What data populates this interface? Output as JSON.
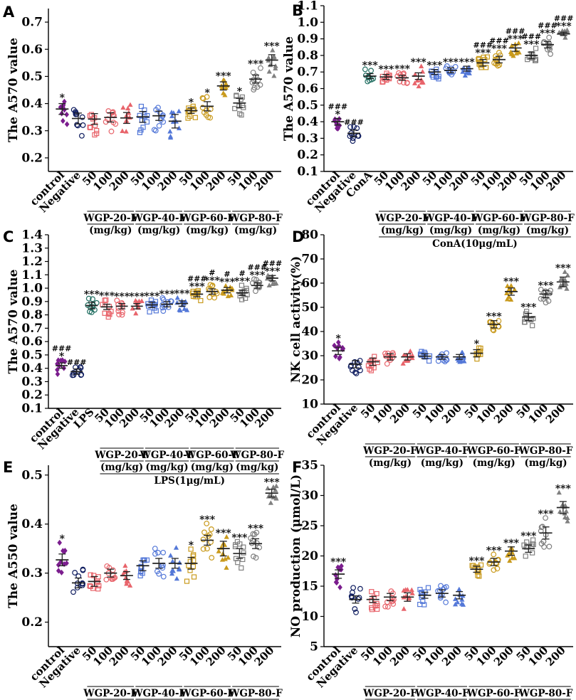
{
  "figure": {
    "categories": [
      "control",
      "Negative",
      "50",
      "100",
      "200",
      "50",
      "100",
      "200",
      "50",
      "100",
      "200",
      "50",
      "100",
      "200"
    ],
    "colors": [
      "#7b1d8e",
      "#0d1b5e",
      "#e8646b",
      "#e8646b",
      "#e8646b",
      "#5478d8",
      "#5478d8",
      "#5478d8",
      "#c99a1c",
      "#c99a1c",
      "#c99a1c",
      "#808080",
      "#808080",
      "#808080"
    ],
    "markers": [
      "diamond",
      "circle",
      "square",
      "circle",
      "triangle",
      "square",
      "circle",
      "triangle",
      "square",
      "circle",
      "triangle",
      "square",
      "circle",
      "triangle"
    ],
    "group_labels": [
      "WGP-20-F",
      "WGP-40-F",
      "WGP-60-F",
      "WGP-80-F"
    ],
    "unit_label": "(mg/kg)"
  },
  "chart_data": [
    {
      "panel": "A",
      "type": "scatter",
      "ylabel": "The A570 value",
      "ylim": [
        0.15,
        0.75
      ],
      "yticks": [
        "0.2",
        "0.3",
        "0.4",
        "0.5",
        "0.6",
        "0.7"
      ],
      "tick_values": [
        0.2,
        0.3,
        0.4,
        0.5,
        0.6,
        0.7
      ],
      "means": [
        0.38,
        0.345,
        0.343,
        0.349,
        0.347,
        0.351,
        0.355,
        0.335,
        0.374,
        0.39,
        0.465,
        0.402,
        0.49,
        0.56
      ],
      "sems": [
        0.02,
        0.02,
        0.02,
        0.017,
        0.02,
        0.02,
        0.017,
        0.025,
        0.01,
        0.017,
        0.015,
        0.017,
        0.015,
        0.02
      ],
      "spreads": [
        0.06,
        0.07,
        0.06,
        0.06,
        0.06,
        0.06,
        0.07,
        0.08,
        0.035,
        0.06,
        0.05,
        0.06,
        0.05,
        0.07
      ],
      "significance": [
        "*",
        "",
        "",
        "",
        "",
        "",
        "",
        "",
        "*",
        "*",
        "***",
        "*",
        "***",
        "***"
      ],
      "hashes": [
        "",
        "",
        "",
        "",
        "",
        "",
        "",
        "",
        "",
        "",
        "",
        "",
        "",
        ""
      ],
      "conditioned": false
    },
    {
      "panel": "B",
      "type": "scatter",
      "ylabel": "The A570 value",
      "ylim": [
        0.1,
        1.1
      ],
      "yticks": [
        "0.1",
        "0.2",
        "0.3",
        "0.4",
        "0.5",
        "0.6",
        "0.7",
        "0.8",
        "0.9",
        "1.0",
        "1.1"
      ],
      "tick_values": [
        0.1,
        0.2,
        0.3,
        0.4,
        0.5,
        0.6,
        0.7,
        0.8,
        0.9,
        1.0,
        1.1
      ],
      "categories": [
        "control",
        "Negative",
        "ConA",
        "50",
        "100",
        "200",
        "50",
        "100",
        "200",
        "50",
        "100",
        "200",
        "50",
        "100",
        "200"
      ],
      "colors": [
        "#7b1d8e",
        "#0d1b5e",
        "#1f6d60",
        "#e8646b",
        "#e8646b",
        "#e8646b",
        "#5478d8",
        "#5478d8",
        "#5478d8",
        "#c99a1c",
        "#c99a1c",
        "#c99a1c",
        "#808080",
        "#808080",
        "#808080"
      ],
      "markers": [
        "diamond",
        "circle",
        "circle",
        "square",
        "circle",
        "triangle",
        "square",
        "circle",
        "triangle",
        "square",
        "circle",
        "triangle",
        "square",
        "circle",
        "triangle"
      ],
      "means": [
        0.4,
        0.33,
        0.675,
        0.67,
        0.665,
        0.675,
        0.7,
        0.71,
        0.72,
        0.755,
        0.775,
        0.845,
        0.8,
        0.865,
        0.93
      ],
      "sems": [
        0.02,
        0.02,
        0.015,
        0.015,
        0.015,
        0.02,
        0.015,
        0.015,
        0.015,
        0.02,
        0.02,
        0.02,
        0.02,
        0.02,
        0.01
      ],
      "spreads": [
        0.06,
        0.07,
        0.05,
        0.05,
        0.05,
        0.07,
        0.05,
        0.05,
        0.05,
        0.06,
        0.06,
        0.06,
        0.06,
        0.06,
        0.025
      ],
      "significance": [
        "*",
        "",
        "***",
        "***",
        "***",
        "***",
        "***",
        "***",
        "***",
        "***",
        "***",
        "***",
        "***",
        "***",
        "***"
      ],
      "hashes": [
        "###",
        "###",
        "",
        "",
        "",
        "",
        "",
        "",
        "",
        "###",
        "###",
        "###",
        "###",
        "###",
        "###"
      ],
      "conditioned": true,
      "condition_label": "ConA(10μg/mL)"
    },
    {
      "panel": "C",
      "type": "scatter",
      "ylabel": "The A570 value",
      "ylim": [
        0.1,
        1.4
      ],
      "yticks": [
        "0.1",
        "0.2",
        "0.3",
        "0.4",
        "0.5",
        "0.6",
        "0.7",
        "0.8",
        "0.9",
        "1.0",
        "1.1",
        "1.2",
        "1.3",
        "1.4"
      ],
      "tick_values": [
        0.1,
        0.2,
        0.3,
        0.4,
        0.5,
        0.6,
        0.7,
        0.8,
        0.9,
        1.0,
        1.1,
        1.2,
        1.3,
        1.4
      ],
      "categories": [
        "control",
        "Negative",
        "LPS",
        "50",
        "100",
        "200",
        "50",
        "100",
        "200",
        "50",
        "100",
        "200",
        "50",
        "100",
        "200"
      ],
      "colors": [
        "#7b1d8e",
        "#0d1b5e",
        "#1f6d60",
        "#e8646b",
        "#e8646b",
        "#e8646b",
        "#5478d8",
        "#5478d8",
        "#5478d8",
        "#c99a1c",
        "#c99a1c",
        "#c99a1c",
        "#808080",
        "#808080",
        "#808080"
      ],
      "markers": [
        "diamond",
        "circle",
        "circle",
        "square",
        "circle",
        "triangle",
        "square",
        "circle",
        "triangle",
        "square",
        "circle",
        "triangle",
        "square",
        "circle",
        "triangle"
      ],
      "means": [
        0.42,
        0.375,
        0.87,
        0.86,
        0.865,
        0.865,
        0.875,
        0.88,
        0.885,
        0.955,
        0.975,
        0.985,
        0.965,
        1.02,
        1.075
      ],
      "sems": [
        0.02,
        0.02,
        0.025,
        0.02,
        0.02,
        0.02,
        0.02,
        0.02,
        0.02,
        0.02,
        0.02,
        0.02,
        0.02,
        0.02,
        0.02
      ],
      "spreads": [
        0.07,
        0.06,
        0.08,
        0.08,
        0.07,
        0.06,
        0.06,
        0.06,
        0.06,
        0.06,
        0.06,
        0.06,
        0.07,
        0.06,
        0.08
      ],
      "significance": [
        "*",
        "",
        "***",
        "***",
        "***",
        "***",
        "***",
        "***",
        "***",
        "***",
        "***",
        "***",
        "***",
        "***",
        "***"
      ],
      "hashes": [
        "###",
        "###",
        "",
        "",
        "",
        "",
        "",
        "",
        "",
        "###",
        "#",
        "#",
        "#",
        "###",
        "###"
      ],
      "conditioned": true,
      "condition_label": "LPS(1μg/mL)"
    },
    {
      "panel": "D",
      "type": "scatter",
      "ylabel": "NK cell activity(%)",
      "ylim": [
        10,
        80
      ],
      "yticks": [
        "10",
        "20",
        "30",
        "40",
        "50",
        "60",
        "70",
        "80"
      ],
      "tick_values": [
        10,
        20,
        30,
        40,
        50,
        60,
        70,
        80
      ],
      "means": [
        32,
        26.5,
        27.5,
        29.5,
        29.5,
        29.8,
        29.5,
        29.5,
        31,
        43,
        56.5,
        46,
        55.5,
        60.5
      ],
      "sems": [
        1.5,
        1.5,
        1.5,
        1.3,
        1.3,
        1.0,
        1.0,
        1.0,
        1.5,
        1.5,
        1.5,
        1.5,
        1.5,
        2
      ],
      "spreads": [
        4,
        4.5,
        5,
        4,
        4,
        3,
        3,
        3,
        4,
        4,
        4,
        4,
        4,
        6
      ],
      "significance": [
        "*",
        "",
        "",
        "",
        "",
        "",
        "",
        "",
        "*",
        "***",
        "***",
        "***",
        "***",
        "***"
      ],
      "hashes": [
        "",
        "",
        "",
        "",
        "",
        "",
        "",
        "",
        "",
        "",
        "",
        "",
        "",
        ""
      ],
      "conditioned": false
    },
    {
      "panel": "E",
      "type": "scatter",
      "ylabel": "The A550 value",
      "ylim": [
        0.15,
        0.52
      ],
      "yticks": [
        "0.2",
        "0.3",
        "0.4",
        "0.5"
      ],
      "tick_values": [
        0.2,
        0.3,
        0.4,
        0.5
      ],
      "means": [
        0.327,
        0.28,
        0.283,
        0.3,
        0.295,
        0.315,
        0.32,
        0.32,
        0.32,
        0.367,
        0.35,
        0.34,
        0.36,
        0.463
      ],
      "sems": [
        0.012,
        0.01,
        0.01,
        0.008,
        0.008,
        0.01,
        0.01,
        0.01,
        0.012,
        0.01,
        0.015,
        0.01,
        0.01,
        0.008
      ],
      "spreads": [
        0.04,
        0.035,
        0.03,
        0.025,
        0.025,
        0.035,
        0.04,
        0.04,
        0.04,
        0.04,
        0.045,
        0.035,
        0.035,
        0.025
      ],
      "significance": [
        "*",
        "",
        "",
        "",
        "",
        "",
        "",
        "",
        "*",
        "***",
        "***",
        "***",
        "***",
        "***"
      ],
      "hashes": [
        "",
        "",
        "",
        "",
        "",
        "",
        "",
        "",
        "",
        "",
        "",
        "",
        "",
        ""
      ],
      "conditioned": false
    },
    {
      "panel": "F",
      "type": "scatter",
      "ylabel": "NO production (μmol/L)",
      "ylim": [
        5,
        35
      ],
      "yticks": [
        "5",
        "10",
        "15",
        "20",
        "25",
        "30",
        "35"
      ],
      "tick_values": [
        5,
        10,
        15,
        20,
        25,
        30,
        35
      ],
      "means": [
        17,
        12.8,
        12.8,
        13.2,
        13.2,
        13.5,
        13.8,
        13.5,
        17.8,
        19,
        20.8,
        21.2,
        23.8,
        28
      ],
      "sems": [
        0.7,
        0.6,
        0.5,
        0.6,
        0.7,
        0.5,
        0.6,
        0.6,
        0.5,
        0.6,
        0.7,
        0.6,
        1,
        1
      ],
      "spreads": [
        2.5,
        2.5,
        2,
        2,
        2.5,
        2,
        2,
        2,
        1.5,
        2,
        2.5,
        2,
        3,
        4
      ],
      "significance": [
        "***",
        "",
        "",
        "",
        "",
        "",
        "",
        "",
        "***",
        "***",
        "***",
        "***",
        "***",
        "***"
      ],
      "hashes": [
        "",
        "",
        "",
        "",
        "",
        "",
        "",
        "",
        "",
        "",
        "",
        "",
        "",
        ""
      ],
      "conditioned": false
    }
  ]
}
